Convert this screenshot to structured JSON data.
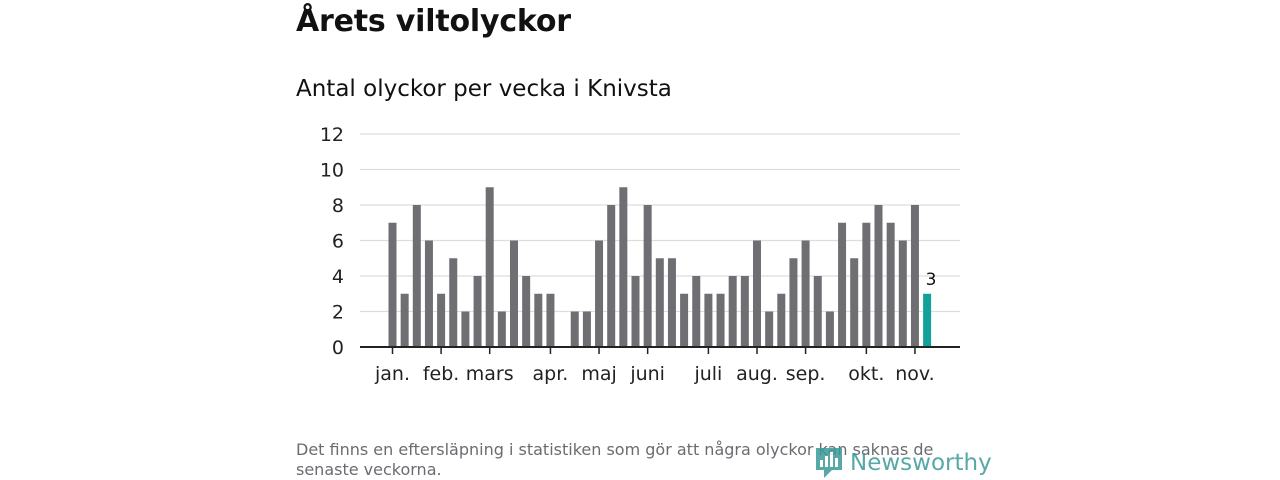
{
  "header": {
    "title": "Årets viltolyckor"
  },
  "chart_data": {
    "type": "bar",
    "title": "Antal olyckor per vecka i Knivsta",
    "xlabel": "",
    "ylabel": "",
    "ylim": [
      0,
      12
    ],
    "yticks": [
      0,
      2,
      4,
      6,
      8,
      10,
      12
    ],
    "grid": true,
    "weeks": [
      1,
      2,
      3,
      4,
      5,
      6,
      7,
      8,
      9,
      10,
      11,
      12,
      13,
      14,
      15,
      16,
      17,
      18,
      19,
      20,
      21,
      22,
      23,
      24,
      25,
      26,
      27,
      28,
      29,
      30,
      31,
      32,
      33,
      34,
      35,
      36,
      37,
      38,
      39,
      40,
      41,
      42,
      43,
      44,
      45,
      46
    ],
    "values": [
      7,
      3,
      8,
      6,
      3,
      5,
      2,
      4,
      9,
      2,
      6,
      4,
      3,
      3,
      0,
      2,
      2,
      6,
      8,
      9,
      4,
      8,
      5,
      5,
      3,
      4,
      3,
      3,
      4,
      4,
      6,
      2,
      3,
      5,
      6,
      4,
      2,
      7,
      5,
      7,
      8,
      7,
      6,
      8,
      3,
      0
    ],
    "highlight_index": 44,
    "highlight_label": "3",
    "month_labels": [
      {
        "label": "jan.",
        "week": 1
      },
      {
        "label": "feb.",
        "week": 5
      },
      {
        "label": "mars",
        "week": 9
      },
      {
        "label": "apr.",
        "week": 14
      },
      {
        "label": "maj",
        "week": 18
      },
      {
        "label": "juni",
        "week": 22
      },
      {
        "label": "juli",
        "week": 27
      },
      {
        "label": "aug.",
        "week": 31
      },
      {
        "label": "sep.",
        "week": 35
      },
      {
        "label": "okt.",
        "week": 40
      },
      {
        "label": "nov.",
        "week": 44
      }
    ],
    "colors": {
      "bar": "#6e6e73",
      "highlight": "#12a199",
      "grid": "#dddddd",
      "axis": "#222222"
    }
  },
  "footer": {
    "note": "Det finns en eftersläpning i statistiken som gör att några olyckor kan saknas de senaste veckorna.",
    "brand": "Newsworthy"
  }
}
